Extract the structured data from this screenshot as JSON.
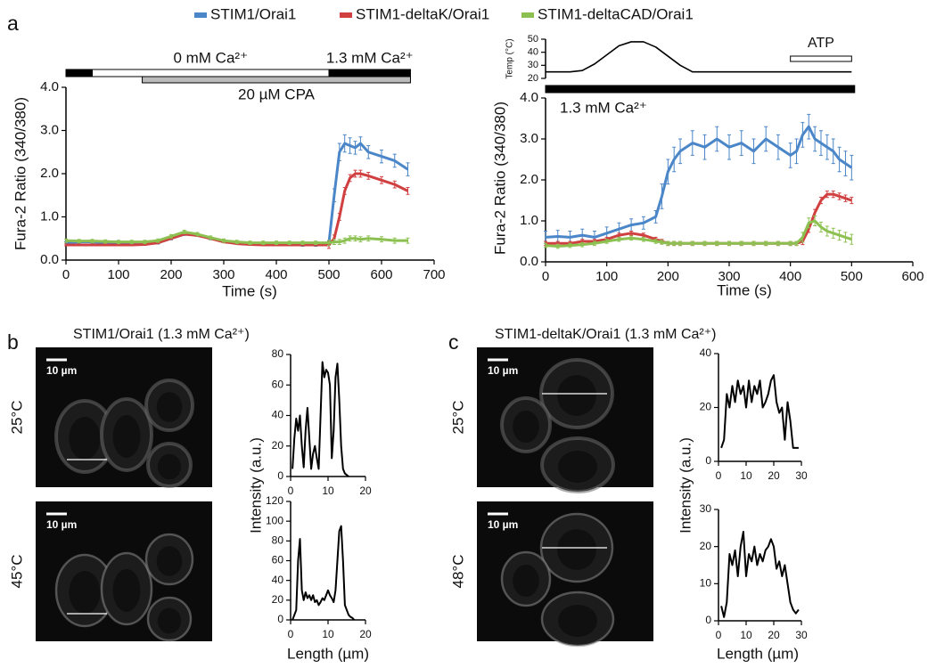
{
  "figure": {
    "panel_labels": [
      "a",
      "b",
      "c"
    ],
    "panels": [
      {
        "title": "STIM1/Orai1 (1.3 mM Ca²⁺)",
        "images": [
          {
            "temperature": "25°C",
            "scale_bar": "10 µm"
          },
          {
            "temperature": "45°C",
            "scale_bar": "10 µm"
          }
        ]
      },
      {
        "title": "STIM1-deltaK/Orai1 (1.3 mM Ca²⁺)",
        "images": [
          {
            "temperature": "25°C",
            "scale_bar": "10 µm"
          },
          {
            "temperature": "48°C",
            "scale_bar": "10 µm"
          }
        ]
      }
    ]
  },
  "chart_data": [
    {
      "type": "line",
      "xlabel": "Time (s)",
      "ylabel": "Fura-2 Ratio (340/380)",
      "x": [
        0,
        25,
        50,
        75,
        100,
        125,
        150,
        175,
        200,
        225,
        250,
        275,
        300,
        325,
        350,
        375,
        400,
        425,
        450,
        475,
        500,
        510,
        520,
        530,
        540,
        550,
        560,
        575,
        600,
        625,
        650
      ],
      "series": [
        {
          "name": "STIM1/Orai1",
          "color": "#4a86c8",
          "values": [
            0.4,
            0.42,
            0.42,
            0.4,
            0.38,
            0.38,
            0.38,
            0.4,
            0.5,
            0.6,
            0.58,
            0.5,
            0.44,
            0.4,
            0.38,
            0.36,
            0.36,
            0.36,
            0.35,
            0.35,
            0.4,
            1.5,
            2.5,
            2.7,
            2.65,
            2.6,
            2.7,
            2.5,
            2.4,
            2.3,
            2.1
          ],
          "errors": [
            0.03,
            0.03,
            0.03,
            0.03,
            0.03,
            0.03,
            0.03,
            0.03,
            0.03,
            0.03,
            0.03,
            0.03,
            0.03,
            0.03,
            0.03,
            0.03,
            0.03,
            0.03,
            0.03,
            0.03,
            0.05,
            0.15,
            0.2,
            0.2,
            0.18,
            0.15,
            0.15,
            0.15,
            0.15,
            0.15,
            0.15
          ]
        },
        {
          "name": "STIM1-deltaK/Orai1",
          "color": "#d04040",
          "values": [
            0.35,
            0.35,
            0.35,
            0.35,
            0.35,
            0.35,
            0.36,
            0.4,
            0.5,
            0.6,
            0.57,
            0.5,
            0.42,
            0.38,
            0.36,
            0.35,
            0.35,
            0.35,
            0.35,
            0.35,
            0.35,
            0.5,
            1.0,
            1.6,
            1.9,
            2.0,
            2.0,
            1.95,
            1.85,
            1.75,
            1.6
          ],
          "errors": [
            0.02,
            0.02,
            0.02,
            0.02,
            0.02,
            0.02,
            0.02,
            0.02,
            0.02,
            0.02,
            0.02,
            0.02,
            0.02,
            0.02,
            0.02,
            0.02,
            0.02,
            0.02,
            0.02,
            0.02,
            0.08,
            0.08,
            0.08,
            0.08,
            0.08,
            0.08,
            0.08,
            0.08,
            0.08,
            0.08,
            0.08
          ]
        },
        {
          "name": "STIM1-deltaCAD/Orai1",
          "color": "#8cc152",
          "values": [
            0.45,
            0.44,
            0.44,
            0.43,
            0.42,
            0.42,
            0.42,
            0.45,
            0.55,
            0.65,
            0.6,
            0.52,
            0.45,
            0.42,
            0.4,
            0.4,
            0.4,
            0.4,
            0.4,
            0.4,
            0.4,
            0.42,
            0.42,
            0.45,
            0.5,
            0.5,
            0.48,
            0.5,
            0.48,
            0.45,
            0.45
          ],
          "errors": [
            0.04,
            0.04,
            0.04,
            0.04,
            0.04,
            0.04,
            0.04,
            0.04,
            0.04,
            0.04,
            0.04,
            0.04,
            0.04,
            0.04,
            0.04,
            0.04,
            0.04,
            0.04,
            0.04,
            0.04,
            0.06,
            0.06,
            0.06,
            0.06,
            0.06,
            0.06,
            0.06,
            0.06,
            0.06,
            0.06,
            0.06
          ]
        }
      ],
      "xlim": [
        0,
        700
      ],
      "xticks": [
        0,
        100,
        200,
        300,
        400,
        500,
        600,
        700
      ],
      "ylim": [
        0,
        4
      ],
      "yticks": [
        {
          "value": 0,
          "label": "0.0"
        },
        {
          "value": 1,
          "label": "1.0"
        },
        {
          "value": 2,
          "label": "2.0"
        },
        {
          "value": 3,
          "label": "3.0"
        },
        {
          "value": 4,
          "label": "4.0"
        }
      ],
      "protocol": [
        [
          {
            "x0": 0,
            "x1": 50,
            "color": "#000000"
          },
          {
            "x0": 50,
            "x1": 500,
            "color": "#ffffff",
            "label": "0 mM Ca²⁺"
          },
          {
            "x0": 500,
            "x1": 655,
            "color": "#000000",
            "label": "1.3 mM Ca²⁺"
          }
        ],
        [
          {
            "x0": 145,
            "x1": 655,
            "color": "#bbbbbb",
            "label": "20 µM CPA"
          }
        ]
      ]
    },
    {
      "type": "line",
      "ylabel": "Temp (°C)",
      "color": "#000000",
      "x": [
        0,
        20,
        40,
        60,
        80,
        100,
        120,
        140,
        160,
        180,
        200,
        220,
        240,
        260,
        300,
        400,
        500
      ],
      "values": [
        25,
        25,
        25,
        26,
        31,
        38,
        45,
        48,
        48,
        44,
        37,
        30,
        25,
        25,
        25,
        25,
        25
      ],
      "xlim": [
        0,
        600
      ],
      "ylim": [
        20,
        50
      ],
      "yticks": [
        20,
        30,
        40,
        50
      ],
      "protocol": [
        [
          {
            "x0": 400,
            "x1": 500,
            "color": "#ffffff",
            "label": "ATP"
          }
        ]
      ]
    },
    {
      "type": "line",
      "xlabel": "Time (s)",
      "ylabel": "Fura-2 Ratio (340/380)",
      "x": [
        0,
        20,
        40,
        60,
        80,
        100,
        120,
        140,
        160,
        180,
        190,
        200,
        210,
        220,
        240,
        260,
        280,
        300,
        320,
        340,
        360,
        380,
        400,
        410,
        420,
        430,
        440,
        450,
        460,
        470,
        480,
        490,
        500
      ],
      "series": [
        {
          "color": "#4a86c8",
          "values": [
            0.6,
            0.62,
            0.6,
            0.65,
            0.6,
            0.7,
            0.8,
            0.9,
            0.95,
            1.1,
            1.6,
            2.2,
            2.5,
            2.7,
            2.9,
            2.8,
            3.0,
            2.8,
            2.9,
            2.7,
            3.0,
            2.8,
            2.6,
            2.7,
            3.1,
            3.3,
            3.0,
            2.9,
            2.8,
            2.7,
            2.5,
            2.4,
            2.3
          ],
          "errors": [
            0.15,
            0.15,
            0.15,
            0.15,
            0.15,
            0.15,
            0.15,
            0.15,
            0.15,
            0.15,
            0.3,
            0.3,
            0.3,
            0.3,
            0.3,
            0.3,
            0.3,
            0.3,
            0.3,
            0.3,
            0.3,
            0.3,
            0.3,
            0.3,
            0.3,
            0.3,
            0.3,
            0.3,
            0.3,
            0.3,
            0.3,
            0.3,
            0.3
          ]
        },
        {
          "color": "#d04040",
          "values": [
            0.45,
            0.45,
            0.45,
            0.5,
            0.5,
            0.55,
            0.65,
            0.7,
            0.65,
            0.55,
            0.5,
            0.45,
            0.45,
            0.45,
            0.45,
            0.45,
            0.45,
            0.45,
            0.45,
            0.45,
            0.45,
            0.45,
            0.45,
            0.45,
            0.5,
            0.8,
            1.2,
            1.5,
            1.65,
            1.65,
            1.6,
            1.55,
            1.5
          ],
          "errors": [
            0.05,
            0.05,
            0.05,
            0.05,
            0.05,
            0.05,
            0.05,
            0.05,
            0.05,
            0.05,
            0.05,
            0.05,
            0.05,
            0.05,
            0.05,
            0.05,
            0.05,
            0.05,
            0.05,
            0.05,
            0.05,
            0.05,
            0.05,
            0.05,
            0.08,
            0.08,
            0.08,
            0.08,
            0.08,
            0.08,
            0.08,
            0.08,
            0.08
          ]
        },
        {
          "color": "#8cc152",
          "values": [
            0.4,
            0.38,
            0.4,
            0.42,
            0.45,
            0.5,
            0.55,
            0.58,
            0.55,
            0.5,
            0.48,
            0.45,
            0.45,
            0.45,
            0.45,
            0.45,
            0.45,
            0.45,
            0.45,
            0.45,
            0.45,
            0.45,
            0.45,
            0.45,
            0.6,
            0.95,
            1.0,
            0.85,
            0.75,
            0.7,
            0.65,
            0.6,
            0.55
          ],
          "errors": [
            0.05,
            0.05,
            0.05,
            0.05,
            0.05,
            0.05,
            0.05,
            0.05,
            0.05,
            0.05,
            0.05,
            0.05,
            0.05,
            0.05,
            0.05,
            0.05,
            0.05,
            0.05,
            0.05,
            0.05,
            0.05,
            0.05,
            0.05,
            0.05,
            0.12,
            0.12,
            0.12,
            0.12,
            0.12,
            0.12,
            0.12,
            0.12,
            0.12
          ]
        }
      ],
      "xlim": [
        0,
        600
      ],
      "xticks": [
        0,
        100,
        200,
        300,
        400,
        500,
        600
      ],
      "ylim": [
        0,
        4
      ],
      "yticks": [
        {
          "value": 0,
          "label": "0.0"
        },
        {
          "value": 1,
          "label": "1.0"
        },
        {
          "value": 2,
          "label": "2.0"
        },
        {
          "value": 3,
          "label": "3.0"
        },
        {
          "value": 4,
          "label": "4.0"
        }
      ],
      "protocol": [
        [
          {
            "x0": 0,
            "x1": 505,
            "color": "#000000",
            "label": "1.3 mM Ca²⁺"
          }
        ]
      ]
    },
    {
      "type": "line",
      "ylabel": "Intensity (a.u.)",
      "color": "#000000",
      "x": [
        0.5,
        1,
        1.5,
        2,
        2.5,
        3,
        3.5,
        4,
        4.5,
        5,
        5.5,
        6,
        6.5,
        7,
        7.5,
        8,
        8.5,
        9,
        9.5,
        10,
        10.5,
        11,
        11.5,
        12,
        12.5,
        13,
        13.5,
        14,
        14.5,
        15,
        15.5
      ],
      "values": [
        5,
        25,
        38,
        30,
        40,
        20,
        6,
        30,
        45,
        25,
        5,
        15,
        20,
        12,
        5,
        40,
        75,
        65,
        70,
        68,
        60,
        12,
        30,
        65,
        74,
        50,
        20,
        5,
        2,
        1,
        0
      ],
      "xlim": [
        0,
        20
      ],
      "xticks": [
        0,
        10,
        20
      ],
      "ylim": [
        0,
        80
      ],
      "yticks": [
        0,
        20,
        40,
        60,
        80
      ]
    },
    {
      "type": "line",
      "xlabel": "Length (µm)",
      "color": "#000000",
      "x": [
        0.5,
        1,
        1.5,
        2,
        2.5,
        3,
        3.5,
        4,
        4.5,
        5,
        5.5,
        6,
        6.5,
        7,
        7.5,
        8,
        8.5,
        9,
        9.5,
        10,
        10.5,
        11,
        11.5,
        12,
        12.5,
        13,
        13.5,
        14,
        14.5,
        15,
        15.5,
        16,
        16.5,
        17
      ],
      "values": [
        0,
        5,
        10,
        60,
        82,
        30,
        20,
        28,
        22,
        25,
        20,
        25,
        18,
        20,
        15,
        18,
        22,
        20,
        25,
        30,
        25,
        22,
        18,
        30,
        60,
        90,
        95,
        60,
        15,
        10,
        5,
        3,
        2,
        0
      ],
      "xlim": [
        0,
        20
      ],
      "xticks": [
        0,
        10,
        20
      ],
      "ylim": [
        0,
        120
      ],
      "yticks": [
        0,
        20,
        40,
        60,
        80,
        100,
        120
      ]
    },
    {
      "type": "line",
      "ylabel": "Intensity (a.u.)",
      "color": "#000000",
      "x": [
        1,
        2,
        3,
        4,
        5,
        6,
        7,
        8,
        9,
        10,
        11,
        12,
        13,
        14,
        15,
        16,
        17,
        18,
        19,
        20,
        21,
        22,
        23,
        24,
        25,
        26,
        27,
        28,
        29
      ],
      "values": [
        5,
        8,
        25,
        20,
        28,
        22,
        30,
        25,
        28,
        20,
        30,
        22,
        28,
        25,
        30,
        20,
        22,
        25,
        30,
        32,
        22,
        18,
        20,
        8,
        22,
        15,
        5,
        5,
        5
      ],
      "xlim": [
        0,
        30
      ],
      "xticks": [
        0,
        10,
        20,
        30
      ],
      "ylim": [
        0,
        40
      ],
      "yticks": [
        0,
        20,
        40
      ]
    },
    {
      "type": "line",
      "xlabel": "Length (µm)",
      "color": "#000000",
      "x": [
        1,
        2,
        3,
        4,
        5,
        6,
        7,
        8,
        9,
        10,
        11,
        12,
        13,
        14,
        15,
        16,
        17,
        18,
        19,
        20,
        21,
        22,
        23,
        24,
        25,
        26,
        27,
        28,
        29
      ],
      "values": [
        4,
        1,
        5,
        18,
        15,
        19,
        12,
        20,
        24,
        12,
        18,
        16,
        20,
        15,
        18,
        16,
        19,
        20,
        22,
        20,
        14,
        16,
        12,
        15,
        10,
        5,
        3,
        2,
        3
      ],
      "xlim": [
        0,
        30
      ],
      "xticks": [
        0,
        10,
        20,
        30
      ],
      "ylim": [
        0,
        30
      ],
      "yticks": [
        0,
        10,
        20,
        30
      ]
    }
  ]
}
